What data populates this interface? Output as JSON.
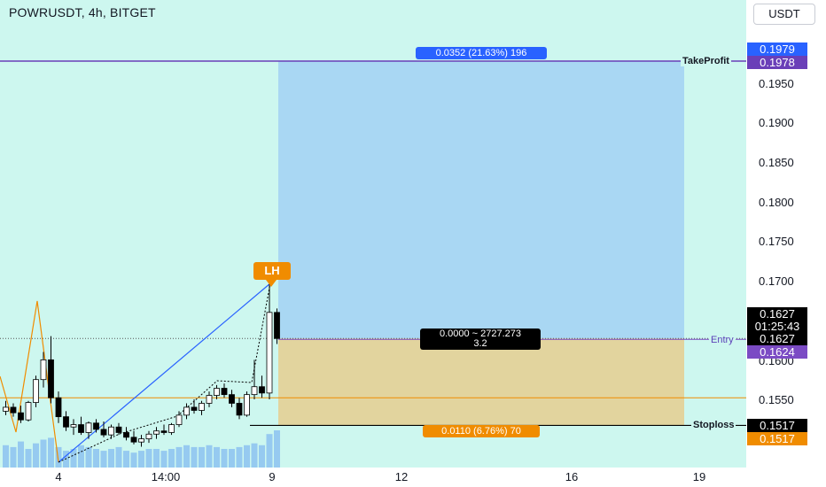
{
  "header": {
    "title": "POWRUSDT, 4h, BITGET",
    "currency_button": "USDT"
  },
  "y_axis": {
    "ticks": [
      "0.1950",
      "0.1900",
      "0.1850",
      "0.1800",
      "0.1750",
      "0.1700",
      "0.1600",
      "0.1550"
    ]
  },
  "x_axis": {
    "ticks": [
      "4",
      "14:00",
      "9",
      "12",
      "16",
      "19"
    ]
  },
  "price_tags": {
    "target_upper": "0.1979",
    "take_profit": "0.1978",
    "current_price": "0.1627",
    "countdown": "01:25:43",
    "entry": "0.1627",
    "entry_lower": "0.1624",
    "stoploss": "0.1517",
    "stoploss_lower": "0.1517"
  },
  "lines": {
    "take_profit_label": "TakeProfit",
    "entry_label": "Entry",
    "stoploss_label": "Stoploss"
  },
  "position_tool": {
    "target_info": "0.0352 (21.63%) 196",
    "stop_info": "0.0110 (6.76%) 70",
    "center_line1": "0.0000 ~ 2727.273",
    "center_line2": "3.2"
  },
  "annotations": {
    "lh_label": "LH"
  },
  "colors": {
    "background": "#cdf7ef",
    "target_zone": "#a9d7f3",
    "stop_zone": "#e2d49e",
    "take_profit_line": "#6a3fb8",
    "entry_tag": "#7b4bc4",
    "target_tag": "#2962ff",
    "stop_tag": "#f08c00",
    "candle_up": "#ffffff",
    "candle_down": "#000000",
    "volume": "#90c4f0",
    "orange_line": "#f08c00",
    "blue_line": "#2962ff"
  },
  "chart_data": {
    "type": "candlestick",
    "symbol": "POWRUSDT",
    "interval": "4h",
    "exchange": "BITGET",
    "ylim": [
      0.1517,
      0.199
    ],
    "candles": [
      {
        "o": 0.1535,
        "h": 0.1548,
        "l": 0.153,
        "c": 0.154
      },
      {
        "o": 0.154,
        "h": 0.1545,
        "l": 0.1528,
        "c": 0.1533
      },
      {
        "o": 0.1533,
        "h": 0.1542,
        "l": 0.152,
        "c": 0.1524
      },
      {
        "o": 0.1524,
        "h": 0.1548,
        "l": 0.1522,
        "c": 0.1546
      },
      {
        "o": 0.1546,
        "h": 0.158,
        "l": 0.154,
        "c": 0.1575
      },
      {
        "o": 0.1575,
        "h": 0.161,
        "l": 0.1565,
        "c": 0.16
      },
      {
        "o": 0.16,
        "h": 0.163,
        "l": 0.1545,
        "c": 0.1552
      },
      {
        "o": 0.1552,
        "h": 0.156,
        "l": 0.152,
        "c": 0.1528
      },
      {
        "o": 0.1528,
        "h": 0.1535,
        "l": 0.151,
        "c": 0.1515
      },
      {
        "o": 0.1515,
        "h": 0.1525,
        "l": 0.1505,
        "c": 0.1518
      },
      {
        "o": 0.1518,
        "h": 0.1528,
        "l": 0.1505,
        "c": 0.1508
      },
      {
        "o": 0.1508,
        "h": 0.1522,
        "l": 0.15,
        "c": 0.152
      },
      {
        "o": 0.152,
        "h": 0.1525,
        "l": 0.1508,
        "c": 0.1512
      },
      {
        "o": 0.1512,
        "h": 0.1522,
        "l": 0.1502,
        "c": 0.1505
      },
      {
        "o": 0.1505,
        "h": 0.1518,
        "l": 0.15,
        "c": 0.1515
      },
      {
        "o": 0.1515,
        "h": 0.152,
        "l": 0.1505,
        "c": 0.1508
      },
      {
        "o": 0.1508,
        "h": 0.1515,
        "l": 0.1498,
        "c": 0.1502
      },
      {
        "o": 0.1502,
        "h": 0.151,
        "l": 0.1493,
        "c": 0.1496
      },
      {
        "o": 0.1496,
        "h": 0.1505,
        "l": 0.149,
        "c": 0.15
      },
      {
        "o": 0.15,
        "h": 0.151,
        "l": 0.1495,
        "c": 0.1506
      },
      {
        "o": 0.1506,
        "h": 0.1515,
        "l": 0.15,
        "c": 0.151
      },
      {
        "o": 0.151,
        "h": 0.1518,
        "l": 0.1505,
        "c": 0.1508
      },
      {
        "o": 0.1508,
        "h": 0.152,
        "l": 0.1505,
        "c": 0.1518
      },
      {
        "o": 0.1518,
        "h": 0.1535,
        "l": 0.1515,
        "c": 0.153
      },
      {
        "o": 0.153,
        "h": 0.1545,
        "l": 0.1525,
        "c": 0.154
      },
      {
        "o": 0.154,
        "h": 0.155,
        "l": 0.1532,
        "c": 0.1536
      },
      {
        "o": 0.1536,
        "h": 0.1548,
        "l": 0.153,
        "c": 0.1545
      },
      {
        "o": 0.1545,
        "h": 0.156,
        "l": 0.154,
        "c": 0.1555
      },
      {
        "o": 0.1555,
        "h": 0.1568,
        "l": 0.155,
        "c": 0.1564
      },
      {
        "o": 0.1564,
        "h": 0.157,
        "l": 0.1552,
        "c": 0.1556
      },
      {
        "o": 0.1556,
        "h": 0.1562,
        "l": 0.154,
        "c": 0.1545
      },
      {
        "o": 0.1545,
        "h": 0.1552,
        "l": 0.1525,
        "c": 0.153
      },
      {
        "o": 0.153,
        "h": 0.156,
        "l": 0.1528,
        "c": 0.1556
      },
      {
        "o": 0.1556,
        "h": 0.16,
        "l": 0.155,
        "c": 0.1566
      },
      {
        "o": 0.1566,
        "h": 0.158,
        "l": 0.1552,
        "c": 0.1558
      },
      {
        "o": 0.1558,
        "h": 0.17,
        "l": 0.155,
        "c": 0.166
      },
      {
        "o": 0.166,
        "h": 0.1665,
        "l": 0.162,
        "c": 0.1627
      }
    ],
    "volume": [
      0.6,
      0.55,
      0.7,
      0.5,
      0.65,
      0.75,
      0.8,
      0.55,
      0.45,
      0.5,
      0.6,
      0.55,
      0.5,
      0.45,
      0.5,
      0.55,
      0.45,
      0.4,
      0.45,
      0.5,
      0.5,
      0.45,
      0.5,
      0.55,
      0.6,
      0.55,
      0.55,
      0.6,
      0.55,
      0.5,
      0.5,
      0.55,
      0.6,
      0.65,
      0.6,
      0.9,
      1.0
    ],
    "position": {
      "entry": 0.1627,
      "take_profit": 0.1978,
      "stop_loss": 0.1517
    }
  }
}
